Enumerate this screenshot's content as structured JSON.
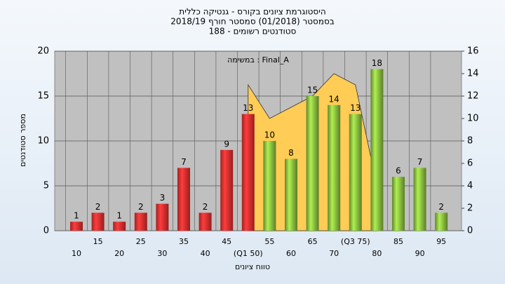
{
  "chart_data": {
    "type": "bar",
    "title": [
      "היסטוגרמת ציונים בקורס - גנטיקה כללית",
      "בסמסטר  (01/2018)  סמסטר חורף 2018/19",
      "סטודנטים רשומים - 188"
    ],
    "annotation": "במשימה : Final_A",
    "ylabel": "מספר סטודנטים",
    "xlabel": "טווח ציונים",
    "categories": [
      "10",
      "15",
      "20",
      "25",
      "30",
      "35",
      "40",
      "45",
      "(Q1 50)",
      "55",
      "60",
      "65",
      "70",
      "(Q3 75)",
      "80",
      "85",
      "90",
      "95"
    ],
    "values": [
      1,
      2,
      1,
      2,
      3,
      7,
      2,
      9,
      13,
      10,
      8,
      15,
      14,
      13,
      18,
      6,
      7,
      2
    ],
    "colors": [
      "#e83030",
      "#e83030",
      "#e83030",
      "#e83030",
      "#e83030",
      "#e83030",
      "#e83030",
      "#e83030",
      "#e83030",
      "#8cc040",
      "#8cc040",
      "#8cc040",
      "#8cc040",
      "#8cc040",
      "#8cc040",
      "#8cc040",
      "#8cc040",
      "#8cc040"
    ],
    "area": {
      "values": [
        null,
        null,
        null,
        null,
        null,
        null,
        null,
        null,
        13,
        10,
        11,
        12,
        14,
        13,
        4,
        null,
        null,
        null
      ],
      "color": "#ffcc55",
      "axis": "y2"
    },
    "ylim": [
      0,
      20
    ],
    "yticks": [
      0,
      5,
      10,
      15,
      20
    ],
    "y2lim": [
      0,
      16
    ],
    "y2ticks": [
      0,
      2,
      4,
      6,
      8,
      10,
      12,
      14,
      16
    ],
    "grid": true
  }
}
